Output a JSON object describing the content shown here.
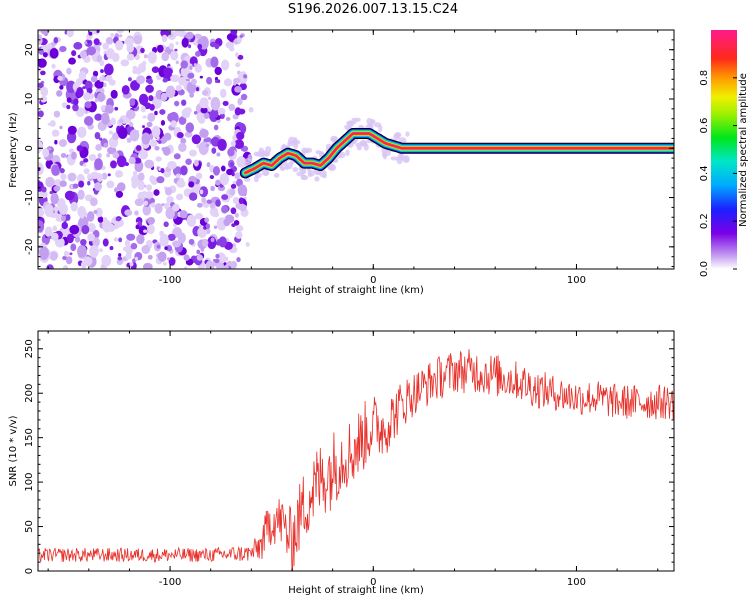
{
  "title": "S196.2026.007.13.15.C24",
  "chart_data": [
    {
      "type": "heatmap",
      "xlabel": "Height of straight line (km)",
      "ylabel": "Frequency (Hz)",
      "xlim": [
        -165,
        148
      ],
      "ylim": [
        -24.5,
        24
      ],
      "x_ticks": [
        -100,
        0,
        100
      ],
      "x_tick_labels": [
        "-100",
        "0",
        "100"
      ],
      "y_ticks": [
        -20,
        -10,
        0,
        10,
        20
      ],
      "y_tick_labels": [
        "-20",
        "-10",
        "0",
        "10",
        "20"
      ],
      "noise_region": {
        "x_range": [
          -165,
          -63
        ],
        "y_range": [
          -24.5,
          24
        ]
      },
      "ridge": {
        "x": [
          -63,
          -58,
          -54,
          -50,
          -46,
          -42,
          -38,
          -34,
          -30,
          -26,
          -22,
          -18,
          -14,
          -10,
          -6,
          -2,
          2,
          6,
          10,
          14,
          20,
          40,
          60,
          80,
          90,
          95,
          100,
          120,
          148
        ],
        "y": [
          -5,
          -4,
          -3,
          -3.5,
          -2,
          -1,
          -1.5,
          -3,
          -3,
          -3.5,
          -2,
          0,
          1.5,
          3,
          3,
          3,
          2,
          1,
          0.5,
          0,
          0,
          0,
          0,
          0,
          0,
          0,
          0,
          0,
          0
        ],
        "halfwidth_hz": 1.2
      },
      "colorbar": {
        "label": "Normalized spectral amplitude",
        "range": [
          0,
          1
        ],
        "ticks": [
          0.0,
          0.2,
          0.4,
          0.6,
          0.8
        ],
        "tick_labels": [
          "0.0",
          "0.2",
          "0.4",
          "0.6",
          "0.8"
        ]
      }
    },
    {
      "type": "line",
      "xlabel": "Height of straight line (km)",
      "ylabel": "SNR (10 * v/v)",
      "xlim": [
        -165,
        148
      ],
      "ylim": [
        0,
        270
      ],
      "x_ticks": [
        -100,
        0,
        100
      ],
      "x_tick_labels": [
        "-100",
        "0",
        "100"
      ],
      "y_ticks": [
        0,
        50,
        100,
        150,
        200,
        250
      ],
      "y_tick_labels": [
        "0",
        "50",
        "100",
        "150",
        "200",
        "250"
      ],
      "color": "#e8302a",
      "trend": {
        "x": [
          -165,
          -120,
          -80,
          -60,
          -55,
          -50,
          -45,
          -40,
          -35,
          -30,
          -25,
          -20,
          -15,
          -10,
          -5,
          0,
          5,
          10,
          15,
          20,
          30,
          40,
          50,
          60,
          70,
          80,
          90,
          100,
          110,
          120,
          130,
          148
        ],
        "y": [
          18,
          18,
          18,
          20,
          30,
          60,
          55,
          30,
          70,
          90,
          105,
          115,
          130,
          135,
          150,
          165,
          160,
          175,
          190,
          200,
          215,
          225,
          225,
          220,
          215,
          205,
          200,
          195,
          195,
          190,
          190,
          190
        ],
        "noise_amplitude": [
          8,
          8,
          8,
          10,
          20,
          30,
          30,
          40,
          40,
          45,
          45,
          45,
          40,
          40,
          40,
          35,
          35,
          30,
          28,
          25,
          25,
          25,
          25,
          25,
          22,
          22,
          20,
          20,
          20,
          20,
          20,
          20
        ]
      }
    }
  ]
}
